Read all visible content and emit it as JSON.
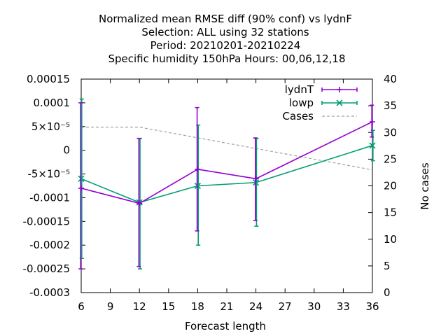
{
  "chart_data": {
    "type": "line",
    "title_lines": [
      "Normalized mean RMSE diff (90% conf) vs lydnF",
      "Selection: ALL using    32 stations",
      "Period: 20210201-20210224",
      "Specific humidity 150hPa   Hours:  00,06,12,18"
    ],
    "xlabel": "Forecast length",
    "ylabel": "",
    "y2label": "No cases",
    "x_ticks": [
      6,
      9,
      12,
      15,
      18,
      21,
      24,
      27,
      30,
      33,
      36
    ],
    "x_tick_labels": [
      "6",
      "9",
      "12",
      "15",
      "18",
      "21",
      "24",
      "27",
      "30",
      "33",
      "36"
    ],
    "xlim": [
      6,
      36
    ],
    "ylim": [
      -0.0003,
      0.00015
    ],
    "y_ticks": [
      0.00015,
      0.0001,
      5e-05,
      0,
      -5e-05,
      -0.0001,
      -0.00015,
      -0.0002,
      -0.00025,
      -0.0003
    ],
    "y_tick_labels": [
      "0.00015",
      "0.0001",
      "5×10⁻⁵",
      "0",
      "-5×10⁻⁵",
      "-0.0001",
      "-0.00015",
      "-0.0002",
      "-0.00025",
      "-0.0003"
    ],
    "y2lim": [
      0,
      40
    ],
    "y2_ticks": [
      0,
      5,
      10,
      15,
      20,
      25,
      30,
      35,
      40
    ],
    "y2_tick_labels": [
      "0",
      "5",
      "10",
      "15",
      "20",
      "25",
      "30",
      "35",
      "40"
    ],
    "legend_position": "top-right",
    "series": [
      {
        "name": "lydnT",
        "color": "#9400d3",
        "marker": "plus",
        "style": "errorbar-line",
        "x": [
          6,
          12,
          18,
          24,
          36
        ],
        "y": [
          -8e-05,
          -0.000112,
          -4e-05,
          -6e-05,
          6e-05
        ],
        "err_low": [
          -0.00025,
          -0.000245,
          -0.00017,
          -0.000148,
          2.8e-05
        ],
        "err_high": [
          0.0001,
          2.5e-05,
          9e-05,
          2.6e-05,
          9.5e-05
        ]
      },
      {
        "name": "lowp",
        "color": "#009e73",
        "marker": "cross",
        "style": "errorbar-line",
        "x": [
          6,
          12,
          18,
          24,
          36
        ],
        "y": [
          -6e-05,
          -0.00011,
          -7.5e-05,
          -6.8e-05,
          1e-05
        ],
        "err_low": [
          -0.000228,
          -0.00025,
          -0.0002,
          -0.00016,
          -2.2e-05
        ],
        "err_high": [
          0.000108,
          2.5e-05,
          5.3e-05,
          2.5e-05,
          4.2e-05
        ]
      },
      {
        "name": "Cases",
        "color": "#a0a0a0",
        "style": "dashed",
        "axis": "y2",
        "x": [
          6,
          12,
          18,
          24,
          36
        ],
        "y": [
          31,
          31,
          29,
          27,
          23
        ]
      }
    ]
  }
}
